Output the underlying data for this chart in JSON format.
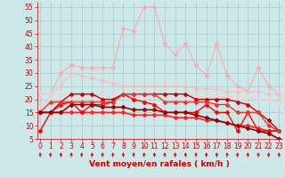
{
  "xlabel": "Vent moyen/en rafales ( km/h )",
  "bg_color": "#cce8e8",
  "grid_color": "#aacccc",
  "x": [
    0,
    1,
    2,
    3,
    4,
    5,
    6,
    7,
    8,
    9,
    10,
    11,
    12,
    13,
    14,
    15,
    16,
    17,
    18,
    19,
    20,
    21,
    22,
    23
  ],
  "series": [
    {
      "color": "#ffaaaa",
      "alpha": 1.0,
      "lw": 0.8,
      "marker": "D",
      "ms": 2.0,
      "y": [
        22,
        22,
        30,
        33,
        32,
        32,
        32,
        32,
        47,
        46,
        55,
        55,
        41,
        37,
        41,
        33,
        29,
        41,
        29,
        25,
        23,
        32,
        25,
        22
      ]
    },
    {
      "color": "#ffbbbb",
      "alpha": 0.9,
      "lw": 0.8,
      "marker": "D",
      "ms": 2.0,
      "y": [
        15,
        22,
        25,
        30,
        29,
        28,
        27,
        26,
        25,
        25,
        25,
        25,
        25,
        25,
        25,
        24,
        24,
        24,
        23,
        23,
        23,
        23,
        22,
        22
      ]
    },
    {
      "color": "#ffcccc",
      "alpha": 0.9,
      "lw": 0.8,
      "marker": "D",
      "ms": 2.0,
      "y": [
        22,
        22,
        22,
        22,
        22,
        22,
        22,
        22,
        22,
        22,
        22,
        22,
        22,
        22,
        22,
        21,
        21,
        21,
        21,
        21,
        21,
        20,
        20,
        19
      ]
    },
    {
      "color": "#ff2222",
      "alpha": 1.0,
      "lw": 1.2,
      "marker": "D",
      "ms": 2.0,
      "y": [
        15,
        15,
        15,
        15,
        15,
        15,
        15,
        15,
        15,
        14,
        14,
        14,
        14,
        13,
        13,
        13,
        12,
        12,
        11,
        10,
        10,
        9,
        8,
        8
      ]
    },
    {
      "color": "#ff0000",
      "alpha": 1.0,
      "lw": 1.0,
      "marker": "D",
      "ms": 2.0,
      "y": [
        8,
        15,
        18,
        19,
        15,
        18,
        18,
        19,
        22,
        20,
        19,
        18,
        15,
        15,
        15,
        15,
        18,
        15,
        15,
        8,
        15,
        8,
        8,
        8
      ]
    },
    {
      "color": "#cc0000",
      "alpha": 1.0,
      "lw": 1.0,
      "marker": "D",
      "ms": 2.0,
      "y": [
        15,
        15,
        19,
        22,
        22,
        22,
        20,
        20,
        22,
        22,
        22,
        22,
        22,
        22,
        22,
        20,
        20,
        20,
        20,
        19,
        18,
        15,
        12,
        8
      ]
    },
    {
      "color": "#ee3333",
      "alpha": 1.0,
      "lw": 1.0,
      "marker": "D",
      "ms": 2.0,
      "y": [
        15,
        19,
        19,
        19,
        19,
        19,
        19,
        19,
        22,
        22,
        22,
        22,
        19,
        19,
        19,
        19,
        19,
        18,
        18,
        15,
        15,
        15,
        10,
        8
      ]
    },
    {
      "color": "#990000",
      "alpha": 1.0,
      "lw": 1.2,
      "marker": "D",
      "ms": 2.0,
      "y": [
        15,
        15,
        15,
        18,
        18,
        18,
        17,
        17,
        17,
        16,
        16,
        16,
        15,
        15,
        15,
        14,
        13,
        12,
        11,
        10,
        9,
        8,
        7,
        5
      ]
    }
  ],
  "xlim": [
    -0.3,
    23.3
  ],
  "ylim": [
    5,
    57
  ],
  "yticks": [
    5,
    10,
    15,
    20,
    25,
    30,
    35,
    40,
    45,
    50,
    55
  ],
  "xticks": [
    0,
    1,
    2,
    3,
    4,
    5,
    6,
    7,
    8,
    9,
    10,
    11,
    12,
    13,
    14,
    15,
    16,
    17,
    18,
    19,
    20,
    21,
    22,
    23
  ],
  "font_color": "#cc0000",
  "axis_label_fontsize": 6.5,
  "tick_fontsize": 5.5
}
